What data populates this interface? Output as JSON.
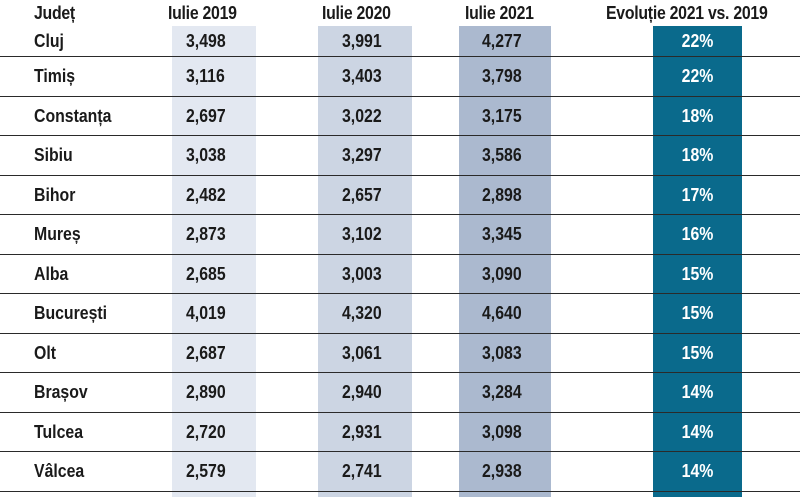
{
  "table": {
    "headers": {
      "judet": "Județ",
      "y2019": "Iulie 2019",
      "y2020": "Iulie 2020",
      "y2021": "Iulie 2021",
      "evolution": "Evoluție 2021 vs. 2019"
    },
    "rows": [
      {
        "judet": "Cluj",
        "y2019": "3,498",
        "y2020": "3,991",
        "y2021": "4,277",
        "evolution": "22%"
      },
      {
        "judet": "Timiș",
        "y2019": "3,116",
        "y2020": "3,403",
        "y2021": "3,798",
        "evolution": "22%"
      },
      {
        "judet": "Constanța",
        "y2019": "2,697",
        "y2020": "3,022",
        "y2021": "3,175",
        "evolution": "18%"
      },
      {
        "judet": "Sibiu",
        "y2019": "3,038",
        "y2020": "3,297",
        "y2021": "3,586",
        "evolution": "18%"
      },
      {
        "judet": "Bihor",
        "y2019": "2,482",
        "y2020": "2,657",
        "y2021": "2,898",
        "evolution": "17%"
      },
      {
        "judet": "Mureș",
        "y2019": "2,873",
        "y2020": "3,102",
        "y2021": "3,345",
        "evolution": "16%"
      },
      {
        "judet": "Alba",
        "y2019": "2,685",
        "y2020": "3,003",
        "y2021": "3,090",
        "evolution": "15%"
      },
      {
        "judet": "București",
        "y2019": "4,019",
        "y2020": "4,320",
        "y2021": "4,640",
        "evolution": "15%"
      },
      {
        "judet": "Olt",
        "y2019": "2,687",
        "y2020": "3,061",
        "y2021": "3,083",
        "evolution": "15%"
      },
      {
        "judet": "Brașov",
        "y2019": "2,890",
        "y2020": "2,940",
        "y2021": "3,284",
        "evolution": "14%"
      },
      {
        "judet": "Tulcea",
        "y2019": "2,720",
        "y2020": "2,931",
        "y2021": "3,098",
        "evolution": "14%"
      },
      {
        "judet": "Vâlcea",
        "y2019": "2,579",
        "y2020": "2,741",
        "y2021": "2,938",
        "evolution": "14%"
      }
    ]
  },
  "colors": {
    "band_2019": "#e3e8f1",
    "band_2020": "#ccd5e3",
    "band_2021": "#abb9cf",
    "band_evolution": "#0a6a8c",
    "row_divider": "#2a2a2a",
    "text": "#1a1a1a",
    "evolution_text": "#ffffff"
  }
}
